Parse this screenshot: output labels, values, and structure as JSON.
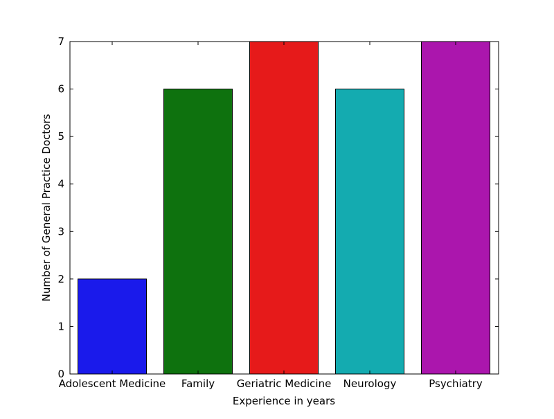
{
  "chart_data": {
    "type": "bar",
    "title": "",
    "xlabel": "Experience in years",
    "ylabel": "Number of General Practice Doctors",
    "categories": [
      "Adolescent Medicine",
      "Family",
      "Geriatric Medicine",
      "Neurology",
      "Psychiatry"
    ],
    "values": [
      2,
      6,
      7,
      6,
      7
    ],
    "colors": [
      "#1a1aeb",
      "#0e720e",
      "#e61a1a",
      "#14abb0",
      "#ab16ad"
    ],
    "ylim": [
      0,
      7
    ],
    "yticks": [
      "0",
      "1",
      "2",
      "3",
      "4",
      "5",
      "6",
      "7"
    ],
    "grid": false,
    "legend": "none"
  }
}
